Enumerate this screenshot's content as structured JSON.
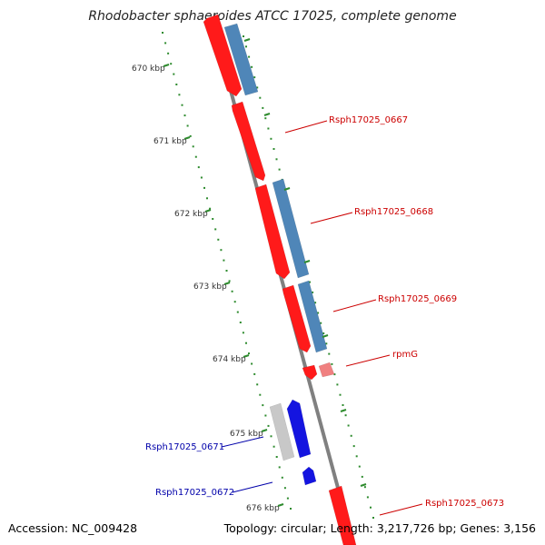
{
  "title": "Rhodobacter sphaeroides ATCC 17025, complete genome",
  "footer": {
    "accession": "Accession: NC_009428",
    "stats": "Topology: circular; Length: 3,217,726 bp; Genes: 3,156"
  },
  "colors": {
    "backbone": "#808080",
    "kbp_tick": "#2e8b2e",
    "red_gene": "#ff1a1a",
    "steel_gene": "#4f86b8",
    "blue_gene": "#1414e0",
    "grey_gene": "#c8c8c8",
    "red_label": "#cc0000",
    "blue_label": "#0000aa"
  },
  "kbp_labels": [
    "670 kbp",
    "671 kbp",
    "672 kbp",
    "673 kbp",
    "674 kbp",
    "675 kbp",
    "676 kbp"
  ],
  "gene_labels": [
    {
      "name": "Rsph17025_0667",
      "color": "red"
    },
    {
      "name": "Rsph17025_0668",
      "color": "red"
    },
    {
      "name": "Rsph17025_0669",
      "color": "red"
    },
    {
      "name": "rpmG",
      "color": "red"
    },
    {
      "name": "Rsph17025_0671",
      "color": "blue"
    },
    {
      "name": "Rsph17025_0672",
      "color": "blue"
    },
    {
      "name": "Rsph17025_0673",
      "color": "red"
    }
  ]
}
